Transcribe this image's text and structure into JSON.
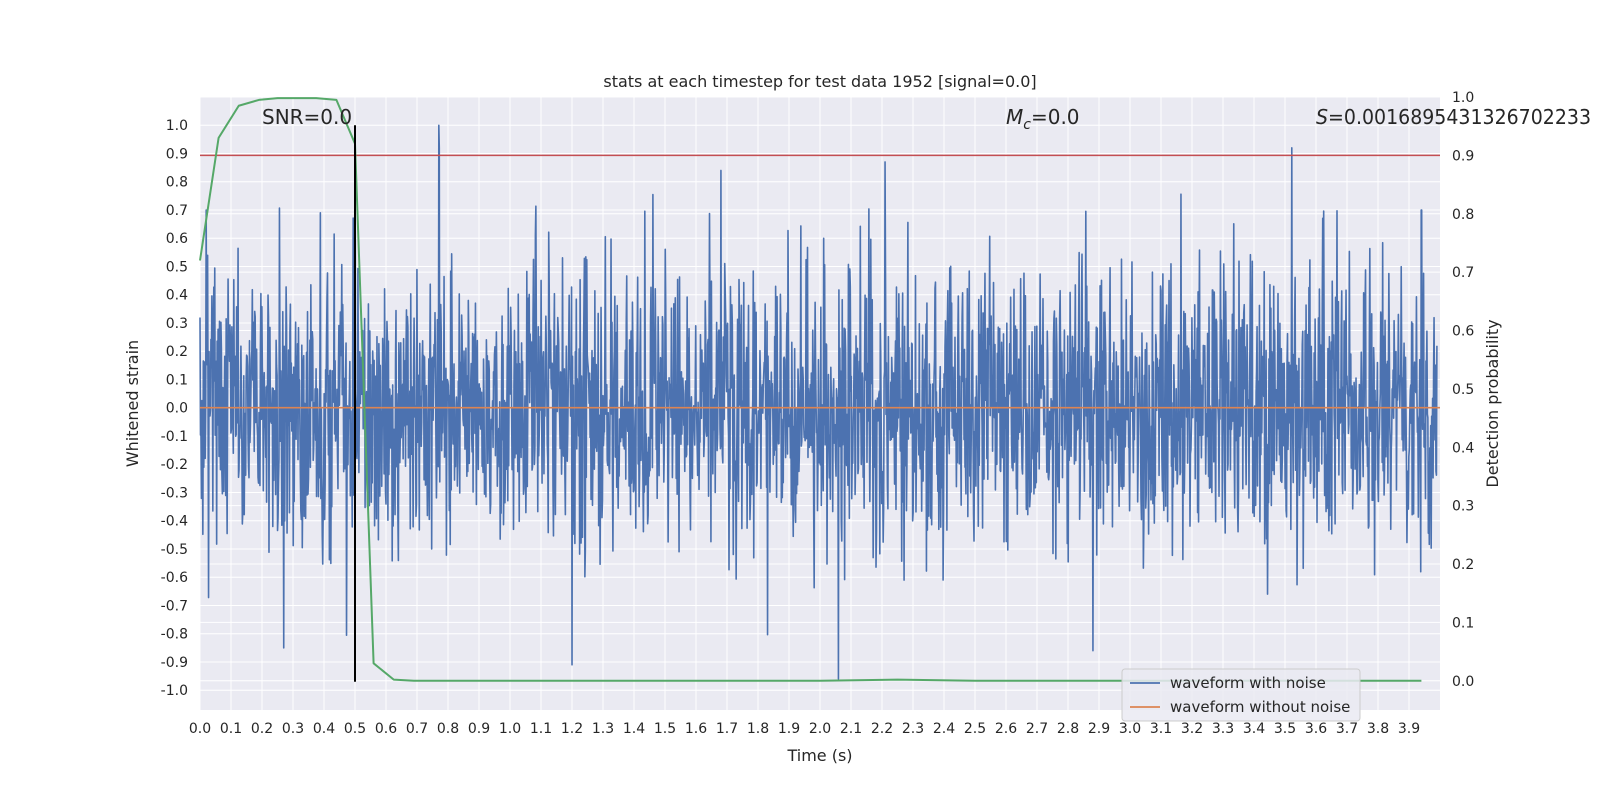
{
  "chart_data": {
    "type": "line",
    "title": "stats at each timestep for test data 1952 [signal=0.0]",
    "xlabel": "Time (s)",
    "ylabel_left": "Whitened strain",
    "ylabel_right": "Detection probability",
    "xlim": [
      0.0,
      4.0
    ],
    "ylim_left": [
      -1.07,
      1.1
    ],
    "ylim_right": [
      -0.05,
      1.0
    ],
    "xticks": [
      "0.0",
      "0.1",
      "0.2",
      "0.3",
      "0.4",
      "0.5",
      "0.6",
      "0.7",
      "0.8",
      "0.9",
      "1.0",
      "1.1",
      "1.2",
      "1.3",
      "1.4",
      "1.5",
      "1.6",
      "1.7",
      "1.8",
      "1.9",
      "2.0",
      "2.1",
      "2.2",
      "2.3",
      "2.4",
      "2.5",
      "2.6",
      "2.7",
      "2.8",
      "2.9",
      "3.0",
      "3.1",
      "3.2",
      "3.3",
      "3.4",
      "3.5",
      "3.6",
      "3.7",
      "3.8",
      "3.9"
    ],
    "yticks_left": [
      "-1.0",
      "-0.9",
      "-0.8",
      "-0.7",
      "-0.6",
      "-0.5",
      "-0.4",
      "-0.3",
      "-0.2",
      "-0.1",
      "0.0",
      "0.1",
      "0.2",
      "0.3",
      "0.4",
      "0.5",
      "0.6",
      "0.7",
      "0.8",
      "0.9",
      "1.0"
    ],
    "yticks_right": [
      "0.0",
      "0.1",
      "0.2",
      "0.3",
      "0.4",
      "0.5",
      "0.6",
      "0.7",
      "0.8",
      "0.9",
      "1.0"
    ],
    "grid": true,
    "legend_placement": "lower-right",
    "annotations": {
      "snr": "SNR=0.0",
      "mc_symbol": "M",
      "mc_sub": "c",
      "mc_value": "=0.0",
      "s_symbol": "S",
      "s_value": "=0.0016895431326702233"
    },
    "series": [
      {
        "name": "waveform with noise",
        "axis": "left",
        "color": "#4c72b0",
        "note": "dense noise trace sampled over 0–4 s",
        "peaks": [
          {
            "x": 0.77,
            "y": 1.0
          },
          {
            "x": 1.68,
            "y": 0.84
          },
          {
            "x": 2.21,
            "y": 0.87
          },
          {
            "x": 2.06,
            "y": 0.79
          },
          {
            "x": 0.5,
            "y": 0.85
          },
          {
            "x": 0.27,
            "y": -0.85
          },
          {
            "x": 2.06,
            "y": -0.96
          },
          {
            "x": 2.88,
            "y": -0.86
          },
          {
            "x": 1.2,
            "y": -0.91
          },
          {
            "x": 3.94,
            "y": 0.7
          },
          {
            "x": 0.02,
            "y": 0.7
          }
        ]
      },
      {
        "name": "waveform without noise",
        "axis": "left",
        "color": "#dd8452",
        "x": [
          0.0,
          4.0
        ],
        "y": [
          0.0,
          0.0
        ]
      },
      {
        "name": "",
        "axis": "right",
        "color": "#55a868",
        "x": [
          0.0,
          0.06,
          0.125,
          0.19,
          0.25,
          0.31,
          0.375,
          0.44,
          0.5,
          0.56,
          0.625,
          0.69,
          0.75,
          1.0,
          1.5,
          2.0,
          2.25,
          2.5,
          3.0,
          3.5,
          3.94
        ],
        "y": [
          0.72,
          0.93,
          0.985,
          0.995,
          0.998,
          0.998,
          0.998,
          0.995,
          0.92,
          0.03,
          0.002,
          0.0,
          0.0,
          0.0,
          0.0,
          0.0,
          0.002,
          0.0,
          0.0,
          0.0,
          0.0
        ]
      }
    ],
    "threshold": {
      "axis": "right",
      "y": 0.9,
      "color": "#c44e52"
    },
    "marker": {
      "x": 0.5,
      "y_from": -0.97,
      "y_to": 1.0,
      "color": "#000000"
    }
  }
}
